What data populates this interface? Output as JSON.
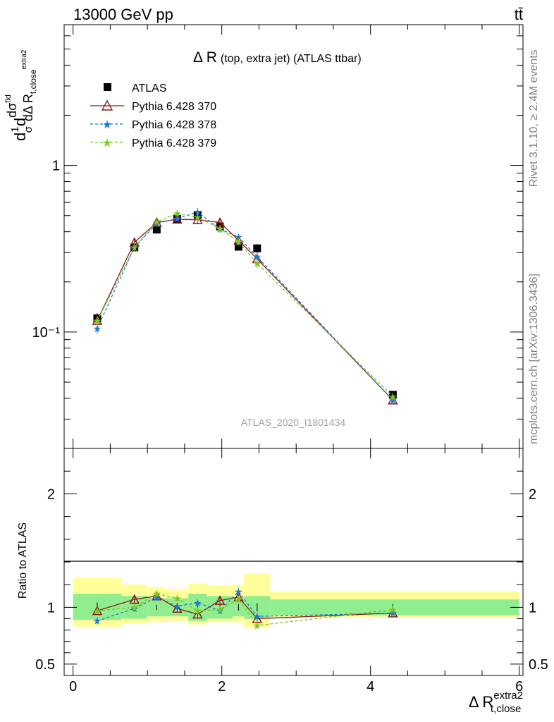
{
  "header": {
    "left": "13000 GeV pp",
    "right": "tt̄"
  },
  "side_labels": {
    "rivet": "Rivet 3.1.10, ≥ 2.4M events",
    "mcplots": "mcplots.cern.ch [arXiv:1306.3436]"
  },
  "chart_data": [
    {
      "type": "scatter",
      "title_main": "Δ R",
      "title_sub": "(top, extra jet) (ATLAS ttbar)",
      "watermark": "ATLAS_2020_I1801434",
      "ylabel": "dσ/dΔ R (1/σ dσ^fid)",
      "ylabel_parts": {
        "d1": "d",
        "frac1_num": "1",
        "frac1_den": "σ",
        "d2": "d",
        "num": "dσ",
        "num_sup": "fid",
        "den": "dΔ R",
        "den_sub": "t,close",
        "den_sup": "extra2"
      },
      "yscale": "log",
      "ylim": [
        0.02,
        7.0
      ],
      "xlim": [
        -0.12,
        6.05
      ],
      "ytick_labels": [
        "1",
        "10⁻¹"
      ],
      "ytick_values": [
        1,
        0.1
      ],
      "legend_position": "top-left",
      "x": [
        0.325,
        0.825,
        1.125,
        1.4,
        1.675,
        1.975,
        2.225,
        2.475,
        4.3
      ],
      "bin_edges": [
        0.0,
        0.65,
        1.0,
        1.25,
        1.55,
        1.8,
        2.15,
        2.3,
        2.65,
        6.0
      ],
      "series": [
        {
          "name": "ATLAS",
          "color": "#000000",
          "marker": "square",
          "values": [
            0.121,
            0.322,
            0.412,
            0.478,
            0.505,
            0.43,
            0.325,
            0.318,
            0.042
          ]
        },
        {
          "name": "Pythia 6.428 370",
          "color": "#8b1a1a",
          "marker": "triangle",
          "dash": "solid",
          "values": [
            0.117,
            0.345,
            0.455,
            0.475,
            0.472,
            0.455,
            0.355,
            0.275,
            0.039
          ]
        },
        {
          "name": "Pythia 6.428 378",
          "color": "#1f78d4",
          "marker": "star",
          "dash": "dashed",
          "values": [
            0.105,
            0.323,
            0.448,
            0.48,
            0.525,
            0.415,
            0.372,
            0.283,
            0.039
          ]
        },
        {
          "name": "Pythia 6.428 379",
          "color": "#78c81e",
          "marker": "star",
          "dash": "dashed",
          "values": [
            0.117,
            0.322,
            0.46,
            0.515,
            0.488,
            0.418,
            0.348,
            0.258,
            0.041
          ]
        }
      ]
    },
    {
      "type": "line",
      "ylabel": "Ratio to ATLAS",
      "xlabel": "Δ R",
      "xlabel_sub": "t,close",
      "xlabel_sup": "extra2",
      "ylim": [
        0.4,
        2.4
      ],
      "xlim": [
        -0.12,
        6.05
      ],
      "ytick_labels": [
        "2",
        "1",
        "0.5"
      ],
      "ytick_values": [
        2,
        1,
        0.5
      ],
      "xtick_labels": [
        "0",
        "2",
        "4",
        "6"
      ],
      "xtick_values": [
        0,
        2,
        4,
        6
      ],
      "band_inner": [
        [
          0.89,
          1.12
        ],
        [
          0.9,
          1.1
        ],
        [
          0.92,
          1.08
        ],
        [
          0.92,
          1.08
        ],
        [
          0.88,
          1.12
        ],
        [
          0.9,
          1.1
        ],
        [
          0.92,
          1.08
        ],
        [
          0.9,
          1.1
        ],
        [
          0.93,
          1.07
        ]
      ],
      "band_outer": [
        [
          0.83,
          1.26
        ],
        [
          0.86,
          1.2
        ],
        [
          0.87,
          1.18
        ],
        [
          0.88,
          1.16
        ],
        [
          0.85,
          1.21
        ],
        [
          0.87,
          1.19
        ],
        [
          0.87,
          1.2
        ],
        [
          0.82,
          1.3
        ],
        [
          0.91,
          1.14
        ]
      ],
      "series": [
        {
          "name": "Pythia 6.428 370",
          "color": "#8b1a1a",
          "values": [
            0.97,
            1.07,
            1.1,
            0.99,
            0.94,
            1.06,
            1.09,
            0.9,
            0.95
          ]
        },
        {
          "name": "Pythia 6.428 378",
          "color": "#1f78d4",
          "values": [
            0.88,
            0.99,
            1.09,
            1.01,
            1.04,
            0.97,
            1.14,
            0.92,
            0.95
          ]
        },
        {
          "name": "Pythia 6.428 379",
          "color": "#78c81e",
          "values": [
            0.97,
            1.0,
            1.12,
            1.08,
            0.97,
            0.98,
            1.07,
            0.84,
            0.98
          ]
        }
      ]
    }
  ]
}
